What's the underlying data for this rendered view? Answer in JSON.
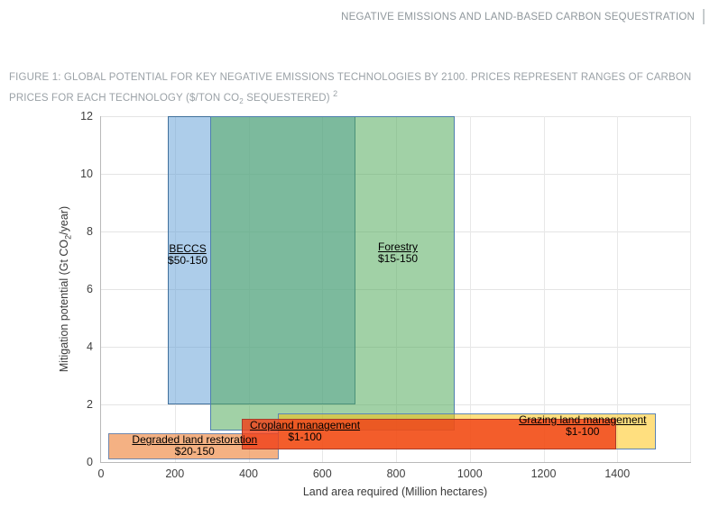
{
  "page": {
    "header": {
      "title": "NEGATIVE EMISSIONS AND LAND-BASED CARBON SEQUESTRATION"
    },
    "caption": {
      "line1": "FIGURE 1: GLOBAL POTENTIAL FOR KEY NEGATIVE EMISSIONS TECHNOLOGIES BY 2100. PRICES REPRESENT RANGES OF CARBON",
      "line2_pre": "PRICES FOR EACH TECHNOLOGY ($/TON CO",
      "line2_sub": "2",
      "line2_post": " SEQUESTERED)",
      "line2_sup": "2"
    }
  },
  "chart_data": {
    "type": "bar",
    "subtype": "floating-range-boxes",
    "title": "FIGURE 1: GLOBAL POTENTIAL FOR KEY NEGATIVE EMISSIONS TECHNOLOGIES BY 2100. PRICES REPRESENT RANGES OF CARBON PRICES FOR EACH TECHNOLOGY ($/TON CO2 SEQUESTERED)",
    "xlabel": "Land area required (Million hectares)",
    "ylabel": "Mitigation potential (Gt CO2/year)",
    "ylabel_parts": {
      "pre": "Mitigation potential (Gt CO",
      "sub": "2",
      "post": "/year)"
    },
    "xlim": [
      0,
      1600
    ],
    "ylim": [
      0,
      12
    ],
    "xticks": [
      0,
      200,
      400,
      600,
      800,
      1000,
      1200,
      1400
    ],
    "yticks": [
      0,
      2,
      4,
      6,
      8,
      10,
      12
    ],
    "grid": true,
    "series": [
      {
        "slug": "beccs",
        "name": "BECCS",
        "price_label": "$50-150",
        "x_range": [
          180,
          690
        ],
        "y_range": [
          2,
          12
        ],
        "label_pos": [
          235,
          7.2
        ],
        "fill_rgba": "rgba(91,155,213,0.5)",
        "border": "#41719c"
      },
      {
        "slug": "forestry",
        "name": "Forestry",
        "price_label": "$15-150",
        "x_range": [
          295,
          960
        ],
        "y_range": [
          1.1,
          12
        ],
        "label_pos": [
          805,
          7.25
        ],
        "fill_rgba": "rgba(84,172,92,0.55)",
        "border": "#4e7fae"
      },
      {
        "slug": "degraded-land-restoration",
        "name": "Degraded land restoration",
        "price_label": "$20-150",
        "x_range": [
          20,
          483
        ],
        "y_range": [
          0.1,
          1.0
        ],
        "label_pos": [
          254,
          0.55
        ],
        "fill_rgba": "rgba(237,125,49,0.6)",
        "border": "#7088ae"
      },
      {
        "slug": "grazing-land-management",
        "name": "Grazing land management",
        "price_label": "$1-100",
        "x_range": [
          480,
          1505
        ],
        "y_range": [
          0.45,
          1.7
        ],
        "label_pos": [
          1306,
          1.25
        ],
        "fill_rgba": "rgba(255,192,0,0.5)",
        "border": "#5d84b4"
      },
      {
        "slug": "cropland-management",
        "name": "Cropland management",
        "price_label": "$1-100",
        "x_range": [
          382,
          1398
        ],
        "y_range": [
          0.45,
          1.5
        ],
        "label_pos": [
          553,
          1.05
        ],
        "fill_rgba": "rgba(240,65,25,0.82)",
        "border": "#a93b2a"
      }
    ]
  }
}
